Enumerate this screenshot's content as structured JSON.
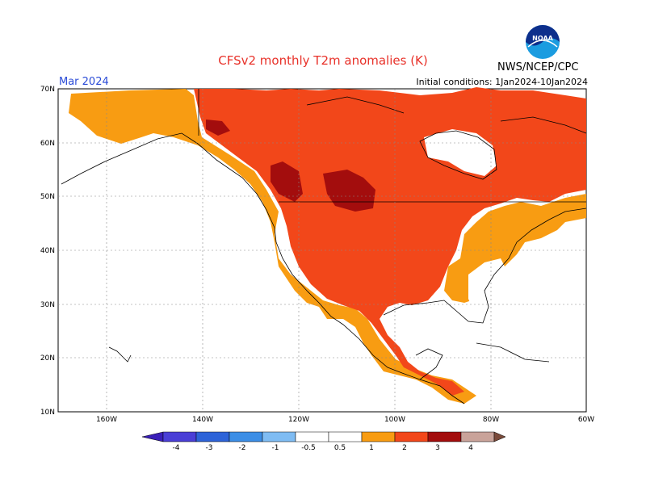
{
  "title": "CFSv2 monthly T2m anomalies (K)",
  "agency": "NWS/NCEP/CPC",
  "valid_month": "Mar 2024",
  "initial_conditions": "Initial conditions: 1Jan2024-10Jan2024",
  "logo_text": "NOAA",
  "map": {
    "region": "North America",
    "lat_labels": [
      "70N",
      "60N",
      "50N",
      "40N",
      "30N",
      "20N",
      "10N"
    ],
    "lon_labels": [
      "160W",
      "140W",
      "120W",
      "100W",
      "80W",
      "60W"
    ],
    "lat_range": [
      10,
      70
    ],
    "lon_range": [
      -170,
      -60
    ]
  },
  "colorbar": {
    "labels": [
      "-4",
      "-3",
      "-2",
      "-1",
      "-0.5",
      "0.5",
      "1",
      "2",
      "3",
      "4"
    ],
    "colors": [
      "#3a1fb8",
      "#4a3fd6",
      "#2d63d8",
      "#3c8ee6",
      "#7fbcf3",
      "#ffffff",
      "#f89c12",
      "#f2471a",
      "#a30d0d",
      "#c9a39a",
      "#7a4a3a"
    ]
  },
  "colors": {
    "anom_05_1": "#f89c12",
    "anom_1_2": "#f2471a",
    "anom_2_3": "#a30d0d",
    "title": "#e8322a",
    "month": "#2a4bd7"
  }
}
